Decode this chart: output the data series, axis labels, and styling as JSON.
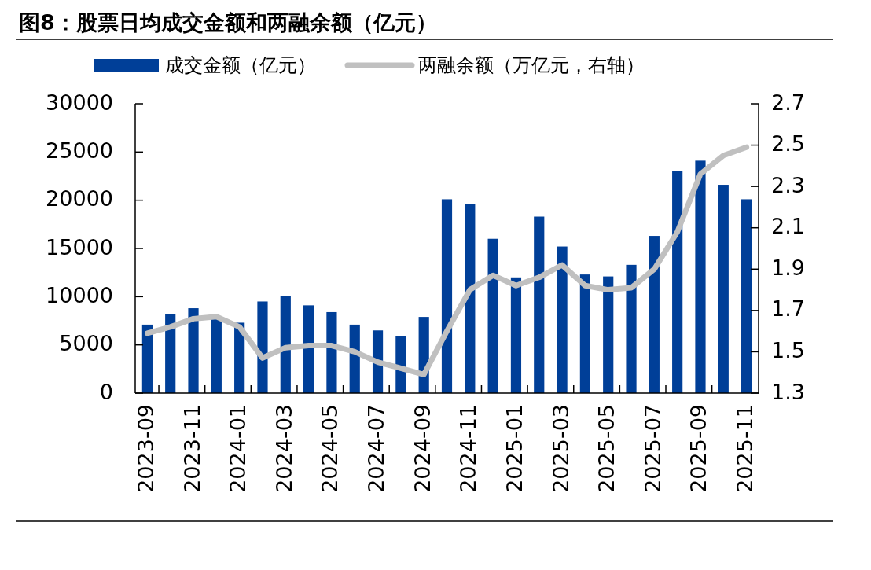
{
  "chart_data": {
    "type": "bar",
    "title": "图8：股票日均成交金额和两融余额（亿元）",
    "categories": [
      "2023-09",
      null,
      "2023-11",
      null,
      "2024-01",
      null,
      "2024-03",
      null,
      "2024-05",
      null,
      "2024-07",
      null,
      "2024-09",
      null,
      "2024-11",
      null,
      "2025-01",
      null,
      "2025-03",
      null,
      "2025-05",
      null,
      "2025-07",
      null,
      "2025-09",
      null,
      "2025-11"
    ],
    "series": [
      {
        "name": "成交金额（亿元）",
        "color": "#003f98",
        "values": [
          7100,
          8200,
          8800,
          7700,
          7300,
          9500,
          10100,
          9100,
          8400,
          7100,
          6500,
          5900,
          7900,
          20100,
          19600,
          16000,
          12000,
          18300,
          15200,
          12300,
          12100,
          13300,
          16300,
          23000,
          24100,
          21600,
          20100
        ]
      },
      {
        "name": "两融余额（万亿元，右轴）",
        "type": "line",
        "axis": "y2",
        "color": "#c0c0c0",
        "values": [
          1.59,
          1.62,
          1.66,
          1.67,
          1.62,
          1.47,
          1.52,
          1.53,
          1.53,
          1.5,
          1.45,
          1.42,
          1.39,
          1.6,
          1.8,
          1.87,
          1.82,
          1.86,
          1.92,
          1.82,
          1.8,
          1.81,
          1.9,
          2.08,
          2.36,
          2.45,
          2.49
        ]
      }
    ],
    "ylim": [
      0,
      30000
    ],
    "yticks": [
      0,
      5000,
      10000,
      15000,
      20000,
      25000,
      30000
    ],
    "y2lim": [
      1.3,
      2.7
    ],
    "y2ticks": [
      1.3,
      1.5,
      1.7,
      1.9,
      2.1,
      2.3,
      2.5,
      2.7
    ],
    "legend": "top",
    "grid": false,
    "marker": "none",
    "line_style": "solid"
  }
}
